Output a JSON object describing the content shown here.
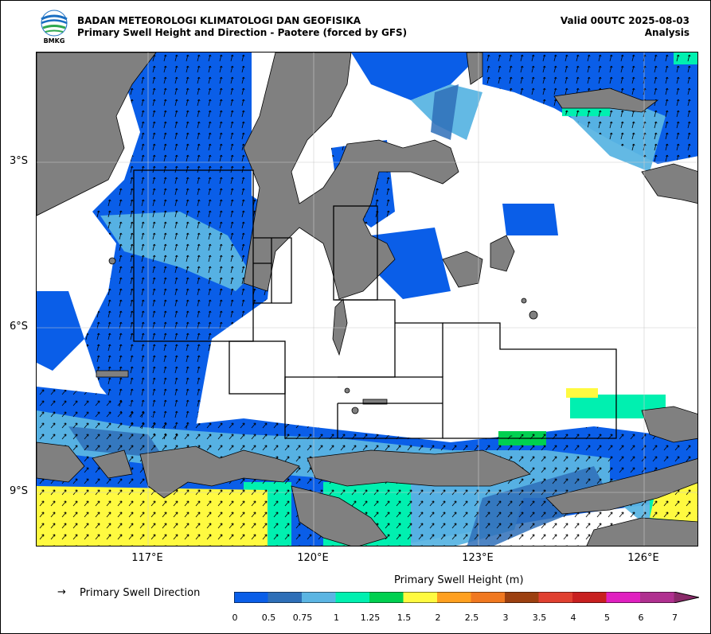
{
  "header": {
    "org": "BADAN METEOROLOGI KLIMATOLOGI DAN GEOFISIKA",
    "subtitle": "Primary Swell Height and Direction - Paotere (forced by GFS)",
    "valid": "Valid 00UTC 2025-08-03",
    "analysis": "Analysis",
    "logo_text": "BMKG"
  },
  "axes": {
    "lat_labels": [
      "3°S",
      "6°S",
      "9°S"
    ],
    "lon_labels": [
      "117°E",
      "120°E",
      "123°E",
      "126°E"
    ]
  },
  "legend": {
    "direction_arrow": "→",
    "direction_label": "Primary Swell Direction",
    "colorbar_title": "Primary Swell Height (m)",
    "ticks": [
      "0",
      "0.5",
      "0.75",
      "1",
      "1.25",
      "1.5",
      "2",
      "2.5",
      "3",
      "3.5",
      "4",
      "5",
      "6",
      "7"
    ],
    "colors": [
      "#0a5ee8",
      "#2e6fb8",
      "#5bb5e3",
      "#00f0b0",
      "#00d050",
      "#fffa40",
      "#ffa020",
      "#f07820",
      "#9c4010",
      "#e04030",
      "#c82020",
      "#e020c0",
      "#b03090",
      "#8a2a6a"
    ]
  },
  "colors": {
    "land": "#808080",
    "deep_blue": "#0a5ee8",
    "mid_blue": "#2e6fb8",
    "light_blue": "#5bb5e3",
    "yellow": "#fffa40",
    "green": "#00d050",
    "aqua": "#00f0b0"
  }
}
